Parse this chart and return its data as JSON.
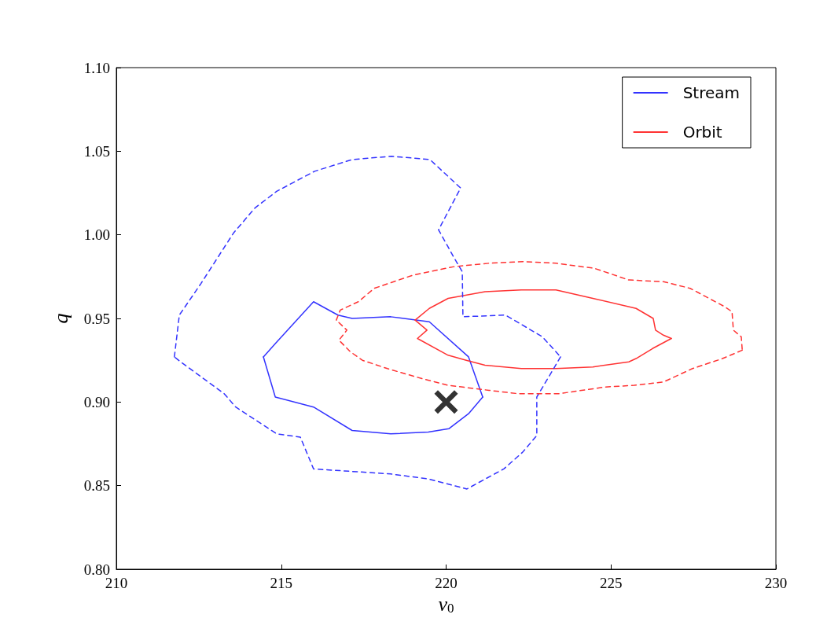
{
  "chart_data": {
    "type": "line",
    "xlabel": "v$_{0}$",
    "ylabel": "q",
    "xlim": [
      210,
      230
    ],
    "xticks": [
      210,
      215,
      220,
      225,
      230
    ],
    "ylim": [
      0.8,
      1.1
    ],
    "yticks": [
      {
        "value": 0.8,
        "label": "0.80"
      },
      0.85,
      {
        "value": 0.9,
        "label": "0.90"
      },
      0.95,
      {
        "value": 1.0,
        "label": "1.00"
      },
      1.05,
      {
        "value": 1.1,
        "label": "1.10"
      }
    ],
    "grid": false,
    "legend": "top right",
    "marker": "none",
    "series": [
      {
        "name": "Stream",
        "color": "#3333ff",
        "line_style": "solid",
        "x": [
          214.46,
          214.82,
          215.98,
          216.72,
          217.15,
          218.32,
          219.49,
          220.68,
          221.11
        ],
        "values": [
          0.927,
          0.935,
          0.96,
          0.952,
          0.95,
          0.951,
          0.948,
          0.927,
          0.903
        ]
      },
      {
        "color": "#3333ff",
        "line_style": "solid",
        "x": [
          221.11,
          220.68,
          220.08,
          219.46,
          218.32,
          217.15,
          215.98,
          214.82,
          214.46
        ],
        "values": [
          0.903,
          0.893,
          0.884,
          0.882,
          0.881,
          0.883,
          0.897,
          0.903,
          0.927
        ]
      },
      {
        "name": "Orbit",
        "color": "#ff3333",
        "line_style": "solid",
        "x": [
          219.06,
          219.49,
          220.06,
          221.18,
          222.28,
          223.33,
          224.45,
          225.76,
          226.28,
          226.35,
          226.59,
          226.83
        ],
        "values": [
          0.949,
          0.956,
          0.962,
          0.966,
          0.967,
          0.967,
          0.962,
          0.956,
          0.95,
          0.943,
          0.94,
          0.938
        ]
      },
      {
        "color": "#ff3333",
        "line_style": "solid",
        "x": [
          226.83,
          226.26,
          225.76,
          225.54,
          224.45,
          223.33,
          222.28,
          221.18,
          220.61,
          220.06,
          219.13,
          219.42,
          219.06
        ],
        "values": [
          0.938,
          0.932,
          0.926,
          0.924,
          0.921,
          0.92,
          0.92,
          0.922,
          0.925,
          0.928,
          0.938,
          0.943,
          0.949
        ]
      },
      {
        "color": "#3333ff",
        "line_style": "dashed",
        "x": [
          211.76,
          211.91,
          212.05,
          212.57,
          213.55,
          214.2,
          214.86,
          216.01,
          217.15,
          218.34,
          219.51,
          220.44,
          219.77,
          220.25,
          220.49,
          220.51,
          221.8,
          222.92,
          223.47
        ],
        "values": [
          0.927,
          0.952,
          0.956,
          0.971,
          1.001,
          1.016,
          1.026,
          1.038,
          1.045,
          1.047,
          1.045,
          1.028,
          1.003,
          0.986,
          0.978,
          0.951,
          0.952,
          0.939,
          0.927
        ]
      },
      {
        "color": "#3333ff",
        "line_style": "dashed",
        "x": [
          223.47,
          222.75,
          222.75,
          222.32,
          221.75,
          220.63,
          219.46,
          218.32,
          215.98,
          215.58,
          214.86,
          213.62,
          213.27,
          211.95,
          211.76
        ],
        "values": [
          0.927,
          0.903,
          0.88,
          0.87,
          0.86,
          0.848,
          0.854,
          0.857,
          0.86,
          0.879,
          0.881,
          0.897,
          0.905,
          0.924,
          0.927
        ]
      },
      {
        "color": "#ff3333",
        "line_style": "dashed",
        "x": [
          216.67,
          216.79,
          217.34,
          217.82,
          219.01,
          220.25,
          221.3,
          222.37,
          223.33,
          224.49,
          225.54,
          226.59,
          227.4,
          228.45,
          228.67,
          228.71,
          228.95,
          228.98
        ],
        "values": [
          0.949,
          0.955,
          0.96,
          0.968,
          0.976,
          0.981,
          0.983,
          0.984,
          0.983,
          0.98,
          0.973,
          0.972,
          0.968,
          0.957,
          0.954,
          0.943,
          0.939,
          0.931
        ]
      },
      {
        "color": "#ff3333",
        "line_style": "dashed",
        "x": [
          228.98,
          228.38,
          227.47,
          226.59,
          225.71,
          224.83,
          223.42,
          223.06,
          222.18,
          221.3,
          220.06,
          219.27,
          218.22,
          217.46,
          217.1,
          216.75,
          216.99,
          216.67
        ],
        "values": [
          0.931,
          0.926,
          0.92,
          0.912,
          0.91,
          0.909,
          0.905,
          0.905,
          0.905,
          0.907,
          0.91,
          0.914,
          0.92,
          0.925,
          0.93,
          0.937,
          0.943,
          0.949
        ]
      },
      {
        "type": "scatter",
        "marker": "cross",
        "color": "#000000",
        "x": [
          220
        ],
        "values": [
          0.9
        ]
      }
    ]
  }
}
